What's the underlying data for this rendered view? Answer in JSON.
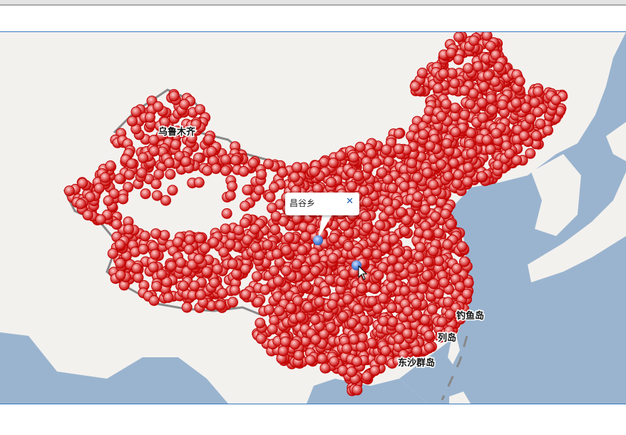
{
  "map": {
    "labels": {
      "urumqi": "乌鲁木齐",
      "diaoyu": "钓鱼岛",
      "liedao": "列岛",
      "dongsha": "东沙群岛"
    },
    "popup": {
      "title": "昌谷乡",
      "close": "✕"
    },
    "colors": {
      "land": "#f3f1ee",
      "ocean": "#9ab4cf",
      "marker": "#cc0000",
      "marker_selected": "#4a86d8",
      "border": "#888888"
    },
    "icons": {
      "marker": "red-pin-dot",
      "selected_marker": "blue-pin-dot",
      "cursor": "arrow-cursor"
    }
  }
}
